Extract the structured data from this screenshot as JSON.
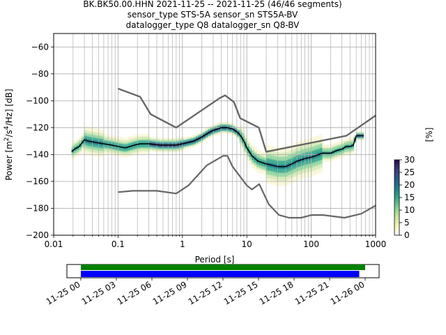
{
  "title": {
    "line1": "BK.BK50.00.HHN   2021-11-25 -- 2021-11-25  (46/46 segments)",
    "line2": "sensor_type STS-5A sensor_sn STS5A-BV",
    "line3": "datalogger_type Q8 datalogger_sn Q8-BV"
  },
  "chart_data": [
    {
      "type": "heatmap",
      "title": "BK.BK50.00.HHN   2021-11-25 -- 2021-11-25  (46/46 segments)",
      "xlabel": "Period [s]",
      "ylabel": "Power [m²/s⁴/Hz] [dB]",
      "x_scale": "log",
      "xlim": [
        0.01,
        1000
      ],
      "ylim": [
        -200,
        -50
      ],
      "x_ticks": [
        0.01,
        0.1,
        1,
        10,
        100,
        1000
      ],
      "x_tick_labels": [
        "0.01",
        "0.1",
        "1",
        "10",
        "100",
        "1000"
      ],
      "y_ticks": [
        -200,
        -180,
        -160,
        -140,
        -120,
        -100,
        -80,
        -60
      ],
      "y_tick_labels": [
        "−200",
        "−180",
        "−160",
        "−140",
        "−120",
        "−100",
        "−80",
        "−60"
      ],
      "grid": true,
      "colorbar": {
        "label": "[%]",
        "ticks": [
          0,
          5,
          10,
          15,
          20,
          25,
          30
        ],
        "range": [
          0,
          30
        ],
        "colors": [
          "#ffffff",
          "#f4f0b8",
          "#c5e39a",
          "#7dcf8c",
          "#2fa58a",
          "#1f7d8a",
          "#2a5a86",
          "#3b3a78",
          "#2d0a4e"
        ]
      },
      "series": [
        {
          "name": "",
          "color": "#000000",
          "x": [
            0.019,
            0.021,
            0.025,
            0.03,
            0.034,
            0.045,
            0.06,
            0.08,
            0.1,
            0.13,
            0.18,
            0.22,
            0.3,
            0.45,
            0.6,
            0.8,
            1.0,
            1.5,
            2.0,
            2.5,
            3.0,
            3.5,
            4.0,
            5.0,
            6.0,
            7.0,
            8.0,
            9.0,
            10,
            12,
            15,
            20,
            25,
            30,
            40,
            50,
            60,
            80,
            100,
            150,
            200,
            250,
            300,
            350,
            400,
            450,
            500,
            550,
            600,
            650
          ],
          "y": [
            -138,
            -136,
            -134,
            -129,
            -130,
            -131,
            -132,
            -133,
            -134,
            -135,
            -133,
            -132,
            -132,
            -133,
            -133,
            -133,
            -132,
            -130,
            -127,
            -124,
            -122,
            -121,
            -120,
            -120,
            -121,
            -123,
            -126,
            -130,
            -135,
            -141,
            -145,
            -147,
            -148,
            -149,
            -149,
            -147,
            -145,
            -143,
            -142,
            -139,
            -139,
            -137,
            -136,
            -134,
            -134,
            -133,
            -126,
            -126,
            -126,
            -126
          ]
        },
        {
          "name": "",
          "color": "#666666",
          "x": [
            0.1,
            0.22,
            0.32,
            0.8,
            3.8,
            4.6,
            6.3,
            7.9,
            15.4,
            20,
            354,
            1000
          ],
          "y": [
            -91,
            -97,
            -110,
            -120,
            -98,
            -96,
            -101,
            -113,
            -120,
            -138,
            -126,
            -111
          ]
        },
        {
          "name": "",
          "color": "#666666",
          "x": [
            0.1,
            0.22,
            0.32,
            0.8,
            3.8,
            4.6,
            6.3,
            7.9,
            15.4,
            20,
            354,
            1000
          ],
          "y": [
            -91,
            -97,
            -110,
            -120,
            -98,
            -96,
            -101,
            -113,
            -120,
            -138,
            -126,
            -111
          ]
        },
        {
          "name": "",
          "color": "#666666",
          "x": [
            0.1,
            0.17,
            0.4,
            0.8,
            1.24,
            2.4,
            4.3,
            5.0,
            6.0,
            10,
            12,
            15.6,
            21.9,
            31.6,
            45,
            70,
            101,
            154,
            328,
            600,
            1000
          ],
          "y": [
            -168,
            -167,
            -167,
            -169,
            -163,
            -148,
            -141,
            -141,
            -149,
            -163,
            -166,
            -162,
            -177,
            -185,
            -187,
            -187,
            -185,
            -185,
            -187,
            -184,
            -178
          ]
        }
      ],
      "heatmap_note": "PPSD probability density shown as colored cells per period bin"
    },
    {
      "type": "bar",
      "x_ticks": [
        "11-25 00",
        "11-25 03",
        "11-25 06",
        "11-25 09",
        "11-25 12",
        "11-25 15",
        "11-25 18",
        "11-25 21",
        "11-26 00"
      ],
      "series": [
        {
          "name": "",
          "color": "#008000",
          "start": "11-25 00",
          "end": "11-26 00"
        },
        {
          "name": "",
          "color": "#0000ff",
          "start": "11-25 00",
          "end": "11-25 23:30"
        }
      ]
    }
  ]
}
